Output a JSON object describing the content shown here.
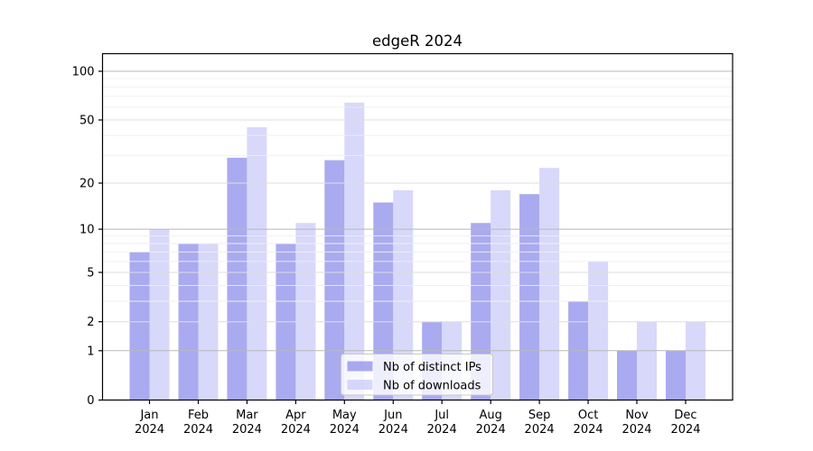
{
  "chart_data": {
    "type": "bar",
    "title": "edgeR 2024",
    "categories": [
      "Jan",
      "Feb",
      "Mar",
      "Apr",
      "May",
      "Jun",
      "Jul",
      "Aug",
      "Sep",
      "Oct",
      "Nov",
      "Dec"
    ],
    "x_tick_year": "2024",
    "series": [
      {
        "name": "Nb of distinct IPs",
        "color": "#8e8eeb",
        "opacity": 0.75,
        "rendered_color": "#aaaaee",
        "values": [
          7,
          8,
          29,
          8,
          28,
          15,
          2,
          11,
          17,
          3,
          1,
          1
        ]
      },
      {
        "name": "Nb of downloads",
        "color": "#cbcbf8",
        "opacity": 0.75,
        "rendered_color": "#d8d8f8",
        "values": [
          10,
          8,
          45,
          11,
          64,
          18,
          2,
          18,
          25,
          6,
          2,
          2
        ]
      }
    ],
    "y_scale": "log1p",
    "y_ticks": [
      0,
      1,
      2,
      5,
      10,
      20,
      50,
      100
    ],
    "y_minor_ticks": [
      3,
      4,
      6,
      7,
      8,
      9,
      30,
      40,
      60,
      70,
      80,
      90
    ],
    "ylim": [
      0,
      128
    ],
    "xlabel": "",
    "ylabel": "",
    "grid": true,
    "legend_position": "lower-center-inside",
    "colors": {
      "axis": "#000000",
      "grid_major_strong": "#b9b9b9",
      "grid_major": "#dedede",
      "grid_minor": "#efefef",
      "legend_bg": "#ffffff",
      "legend_border": "#c9c9c9",
      "text": "#000000"
    }
  }
}
